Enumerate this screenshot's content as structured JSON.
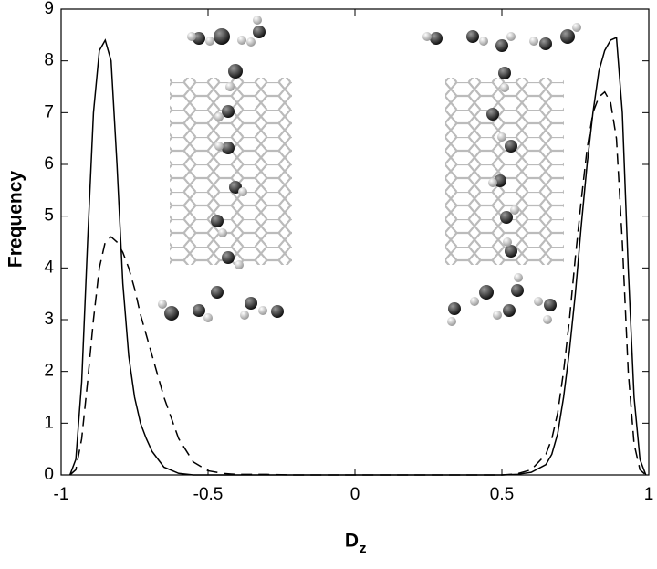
{
  "chart_data": {
    "type": "line",
    "ylabel": "Frequency",
    "xlabel": "D",
    "xlabel_subscript": "z",
    "x": [
      -0.97,
      -0.95,
      -0.93,
      -0.91,
      -0.89,
      -0.87,
      -0.85,
      -0.83,
      -0.81,
      -0.79,
      -0.77,
      -0.75,
      -0.73,
      -0.71,
      -0.69,
      -0.67,
      -0.65,
      -0.6,
      -0.55,
      -0.5,
      -0.45,
      -0.4,
      -0.3,
      -0.2,
      -0.1,
      0,
      0.1,
      0.2,
      0.3,
      0.4,
      0.5,
      0.55,
      0.6,
      0.65,
      0.67,
      0.69,
      0.71,
      0.73,
      0.75,
      0.77,
      0.79,
      0.81,
      0.83,
      0.85,
      0.87,
      0.89,
      0.91,
      0.93,
      0.95,
      0.97,
      0.99
    ],
    "series": [
      {
        "color": "#000000",
        "linestyle": "solid",
        "values": [
          0,
          0.3,
          1.8,
          4.5,
          7.0,
          8.2,
          8.4,
          8.0,
          6.0,
          3.7,
          2.3,
          1.5,
          1.0,
          0.7,
          0.45,
          0.3,
          0.15,
          0.03,
          0,
          0,
          0,
          0,
          0,
          0,
          0,
          0,
          0,
          0,
          0,
          0,
          0,
          0.01,
          0.05,
          0.2,
          0.4,
          0.8,
          1.5,
          2.4,
          3.5,
          4.8,
          6.0,
          7.0,
          7.8,
          8.2,
          8.4,
          8.45,
          7.0,
          4.0,
          1.5,
          0.3,
          0
        ]
      },
      {
        "color": "#000000",
        "linestyle": "dashed",
        "values": [
          0,
          0.1,
          0.7,
          1.8,
          3.0,
          4.0,
          4.5,
          4.6,
          4.5,
          4.3,
          4.0,
          3.6,
          3.1,
          2.7,
          2.3,
          1.9,
          1.5,
          0.7,
          0.25,
          0.08,
          0.03,
          0.01,
          0.01,
          0,
          0,
          0,
          0,
          0,
          0,
          0,
          0,
          0.02,
          0.1,
          0.4,
          0.7,
          1.2,
          2.0,
          3.0,
          4.2,
          5.3,
          6.3,
          7.0,
          7.3,
          7.4,
          7.2,
          6.5,
          4.5,
          2.0,
          0.6,
          0.1,
          0
        ]
      }
    ],
    "xlim": [
      -1,
      1
    ],
    "xticks": [
      -1,
      -0.5,
      0,
      0.5,
      1
    ],
    "ylim": [
      0,
      9
    ],
    "yticks": [
      0,
      1,
      2,
      3,
      4,
      5,
      6,
      7,
      8,
      9
    ],
    "grid": false
  }
}
